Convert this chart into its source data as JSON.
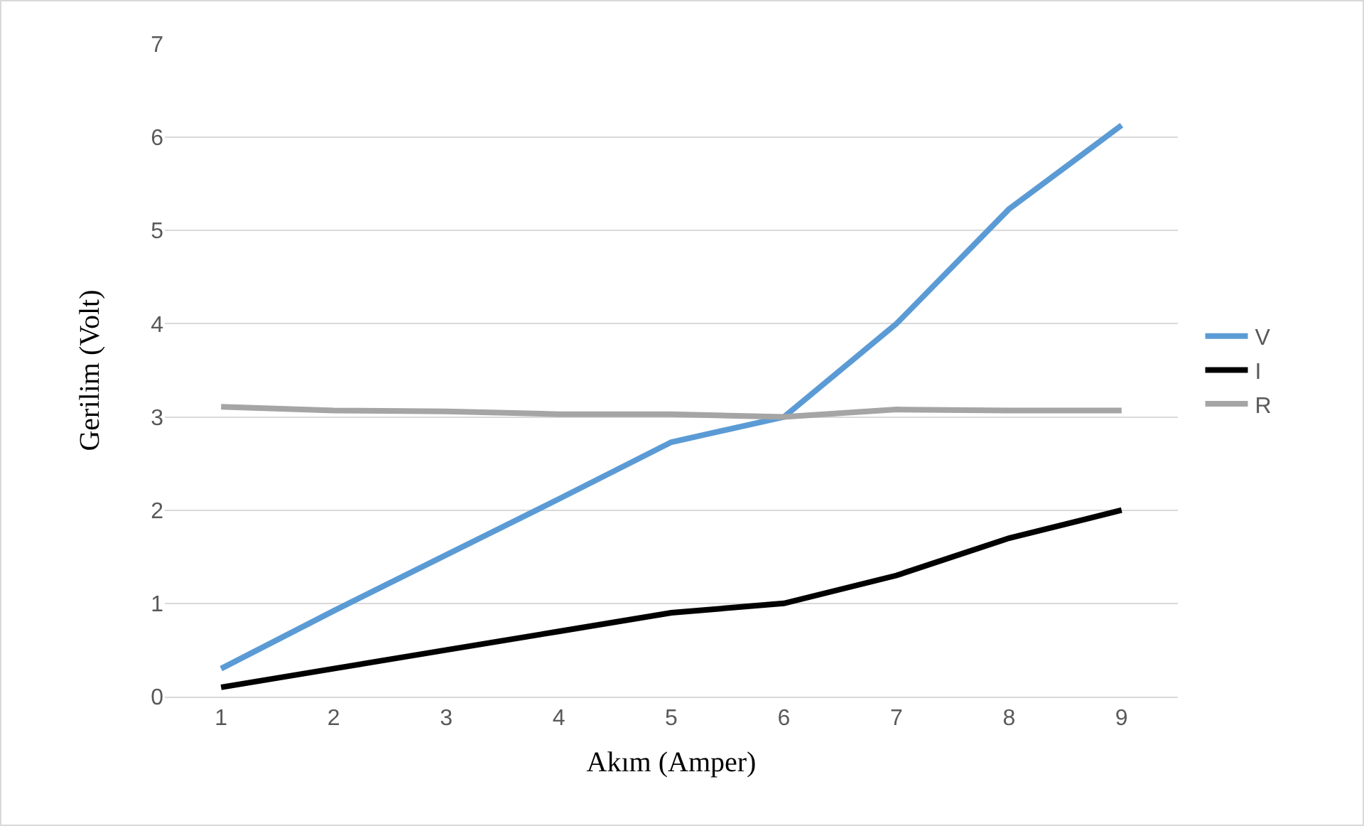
{
  "chart_data": {
    "type": "line",
    "xlabel": "Akım (Amper)",
    "ylabel": "Gerilim (Volt)",
    "categories": [
      "1",
      "2",
      "3",
      "4",
      "5",
      "6",
      "7",
      "8",
      "9"
    ],
    "series": [
      {
        "name": "V",
        "color": "#5b9bd5",
        "values": [
          0.3,
          0.92,
          1.52,
          2.12,
          2.73,
          3.0,
          4.0,
          5.23,
          6.13
        ]
      },
      {
        "name": "I",
        "color": "#000000",
        "values": [
          0.1,
          0.3,
          0.5,
          0.7,
          0.9,
          1.0,
          1.3,
          1.7,
          2.0
        ]
      },
      {
        "name": "R",
        "color": "#a5a5a5",
        "values": [
          3.11,
          3.07,
          3.06,
          3.03,
          3.03,
          3.0,
          3.08,
          3.07,
          3.07
        ]
      }
    ],
    "ylim": [
      0,
      7
    ],
    "yticks": [
      0,
      1,
      2,
      3,
      4,
      5,
      6,
      7
    ],
    "grid": "y",
    "legend": "right",
    "marker": "none",
    "line_style": "solid"
  }
}
